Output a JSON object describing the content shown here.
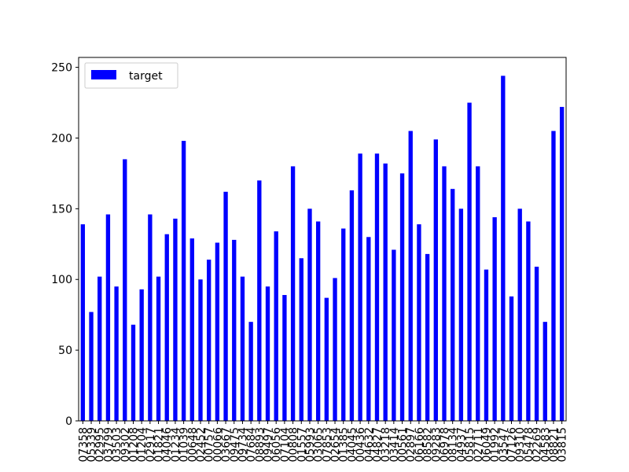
{
  "chart_data": {
    "type": "bar",
    "series": [
      {
        "name": "target",
        "color": "#0000ff",
        "values": [
          139,
          77,
          102,
          146,
          95,
          185,
          68,
          93,
          146,
          102,
          132,
          143,
          198,
          129,
          100,
          114,
          126,
          162,
          128,
          102,
          70,
          170,
          95,
          134,
          89,
          180,
          115,
          150,
          141,
          87,
          101,
          136,
          163,
          189,
          130,
          189,
          182,
          121,
          175,
          205,
          139,
          118,
          199,
          180,
          164,
          150,
          225,
          180,
          107,
          144,
          244,
          88,
          150,
          141,
          109,
          70,
          205,
          222
        ]
      }
    ],
    "categories": [
      "07358",
      "05339",
      "02995",
      "03799",
      "03503",
      "09302",
      "01208",
      "01204",
      "02917",
      "01821",
      "04046",
      "01234",
      "01039",
      "00648",
      "02452",
      "00757",
      "00066",
      "03667",
      "09475",
      "09734",
      "07684",
      "08893",
      "09497",
      "06056",
      "07104",
      "00808",
      "01557",
      "05993",
      "03065",
      "07853",
      "02654",
      "01385",
      "04045",
      "00436",
      "04632",
      "04827",
      "03218",
      "03414",
      "00561",
      "02897",
      "06166",
      "08582",
      "09283",
      "06978",
      "08134",
      "04937",
      "05815",
      "02711",
      "06049",
      "01992",
      "03547",
      "07126",
      "09310",
      "05478",
      "02269",
      "04583",
      "08821",
      "03815"
    ],
    "ylim": [
      0,
      257
    ],
    "yticks": [
      0,
      50,
      100,
      150,
      200,
      250
    ],
    "legend": {
      "position": "top-left",
      "label": "target"
    },
    "grid": false
  }
}
